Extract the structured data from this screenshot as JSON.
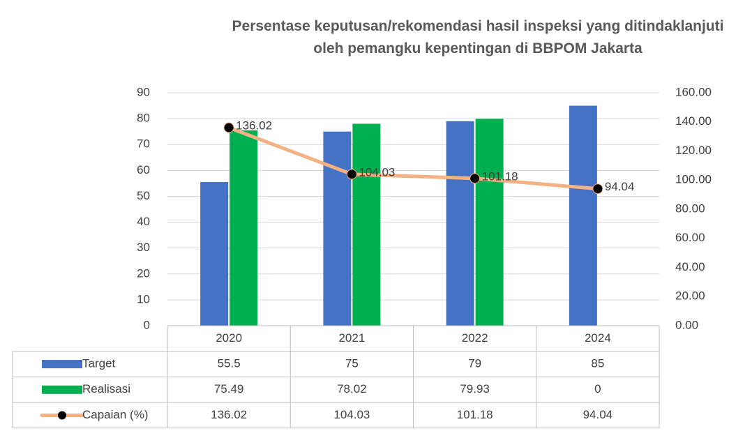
{
  "chart_data": {
    "type": "bar",
    "title": "Persentase keputusan/rekomendasi hasil inspeksi yang ditindaklanjuti oleh pemangku kepentingan di BBPOM Jakarta",
    "categories": [
      "2020",
      "2021",
      "2022",
      "2024"
    ],
    "series": [
      {
        "name": "Target",
        "color": "#4472c4",
        "values": [
          55.5,
          75,
          79,
          85
        ]
      },
      {
        "name": "Realisasi",
        "color": "#00b050",
        "values": [
          75.49,
          78.02,
          79.93,
          0
        ]
      },
      {
        "name": "Capaian (%)",
        "type": "line",
        "axis": "y2",
        "color": "#f4b183",
        "values": [
          136.02,
          104.03,
          101.18,
          94.04
        ]
      }
    ],
    "ylim": [
      0,
      90
    ],
    "yticks": [
      0,
      10,
      20,
      30,
      40,
      50,
      60,
      70,
      80,
      90
    ],
    "y2lim": [
      0,
      160
    ],
    "y2ticks": [
      {
        "value": 0,
        "label": "0.00"
      },
      {
        "value": 20,
        "label": "20.00"
      },
      {
        "value": 40,
        "label": "40.00"
      },
      {
        "value": 60,
        "label": "60.00"
      },
      {
        "value": 80,
        "label": "80.00"
      },
      {
        "value": 100,
        "label": "100.00"
      },
      {
        "value": 120,
        "label": "120.00"
      },
      {
        "value": 140,
        "label": "140.00"
      },
      {
        "value": 160,
        "label": "160.00"
      }
    ],
    "grid": true,
    "data_table": true
  }
}
